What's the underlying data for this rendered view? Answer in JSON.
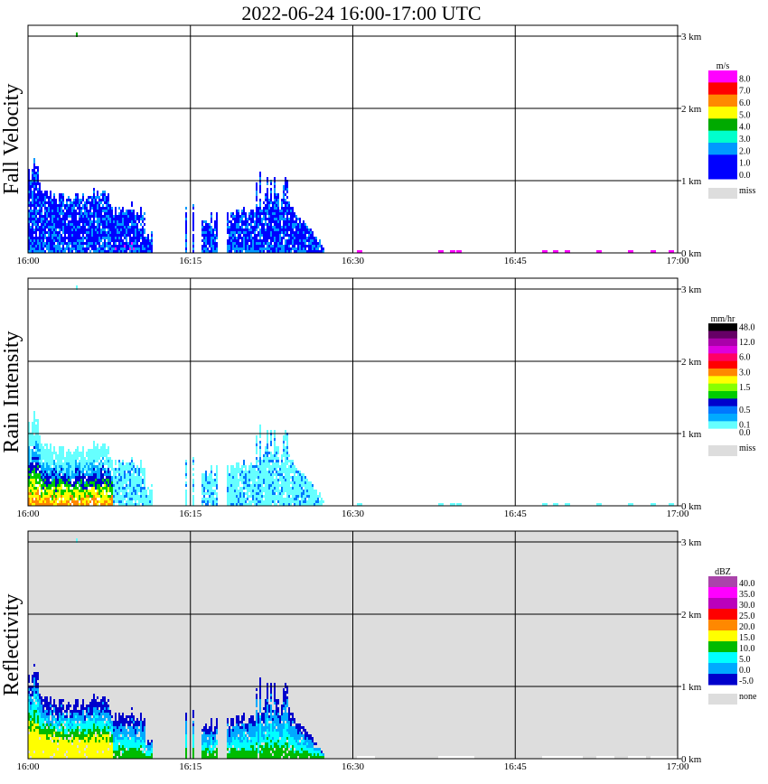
{
  "title": "2022-06-24   16:00-17:00 UTC",
  "chart_data": [
    {
      "type": "heatmap",
      "name": "Fall Velocity",
      "ylabel": "Fall Velocity",
      "x_ticks": [
        "16:00",
        "16:15",
        "16:30",
        "16:45",
        "17:00"
      ],
      "y_ticks": [
        "0 km",
        "1 km",
        "2 km",
        "3 km"
      ],
      "ylim_km": [
        0,
        3.15
      ],
      "background": "#ffffff",
      "colorbar": {
        "unit": "m/s",
        "entries": [
          {
            "label": "8.0",
            "color": "#ff00ff"
          },
          {
            "label": "7.0",
            "color": "#ff0000"
          },
          {
            "label": "6.0",
            "color": "#ff8800"
          },
          {
            "label": "5.0",
            "color": "#ffff00"
          },
          {
            "label": "4.0",
            "color": "#00aa00"
          },
          {
            "label": "3.0",
            "color": "#00ffcc"
          },
          {
            "label": "2.0",
            "color": "#0099ff"
          },
          {
            "label": "1.0",
            "color": "#0000ff"
          },
          {
            "label": "0.0",
            "color": "#0000ff"
          }
        ],
        "miss_label": "miss",
        "miss_color": "#dddddd"
      }
    },
    {
      "type": "heatmap",
      "name": "Rain Intensity",
      "ylabel": "Rain Intensity",
      "x_ticks": [
        "16:00",
        "16:15",
        "16:30",
        "16:45",
        "17:00"
      ],
      "y_ticks": [
        "0 km",
        "1 km",
        "2 km",
        "3 km"
      ],
      "ylim_km": [
        0,
        3.15
      ],
      "background": "#ffffff",
      "colorbar": {
        "unit": "mm/hr",
        "entries": [
          {
            "label": "48.0",
            "color": "#000000"
          },
          {
            "label": "",
            "color": "#660066"
          },
          {
            "label": "12.0",
            "color": "#aa00aa"
          },
          {
            "label": "",
            "color": "#dd00dd"
          },
          {
            "label": "6.0",
            "color": "#ff0066"
          },
          {
            "label": "",
            "color": "#ff0000"
          },
          {
            "label": "3.0",
            "color": "#ff8800"
          },
          {
            "label": "",
            "color": "#ffff00"
          },
          {
            "label": "1.5",
            "color": "#88ff00"
          },
          {
            "label": "",
            "color": "#00cc00"
          },
          {
            "label": "",
            "color": "#0000cc"
          },
          {
            "label": "0.5",
            "color": "#0077ff"
          },
          {
            "label": "",
            "color": "#00aaff"
          },
          {
            "label": "0.1",
            "color": "#66ffff"
          },
          {
            "label": "0.0",
            "color": "#ffffff"
          }
        ],
        "miss_label": "miss",
        "miss_color": "#dddddd"
      }
    },
    {
      "type": "heatmap",
      "name": "Reflectivity",
      "ylabel": "Reflectivity",
      "x_ticks": [
        "16:00",
        "16:15",
        "16:30",
        "16:45",
        "17:00"
      ],
      "y_ticks": [
        "0 km",
        "1 km",
        "2 km",
        "3 km"
      ],
      "ylim_km": [
        0,
        3.15
      ],
      "background": "#dddddd",
      "colorbar": {
        "unit": "dBZ",
        "entries": [
          {
            "label": "40.0",
            "color": "#aa44aa"
          },
          {
            "label": "35.0",
            "color": "#ff00ff"
          },
          {
            "label": "30.0",
            "color": "#bb00bb"
          },
          {
            "label": "25.0",
            "color": "#ff0000"
          },
          {
            "label": "20.0",
            "color": "#ff8800"
          },
          {
            "label": "15.0",
            "color": "#ffff00"
          },
          {
            "label": "10.0",
            "color": "#00bb00"
          },
          {
            "label": "5.0",
            "color": "#00ffff"
          },
          {
            "label": "0.0",
            "color": "#00aaff"
          },
          {
            "label": "-5.0",
            "color": "#0000cc"
          }
        ],
        "miss_label": "none",
        "miss_color": "#dddddd"
      }
    }
  ]
}
